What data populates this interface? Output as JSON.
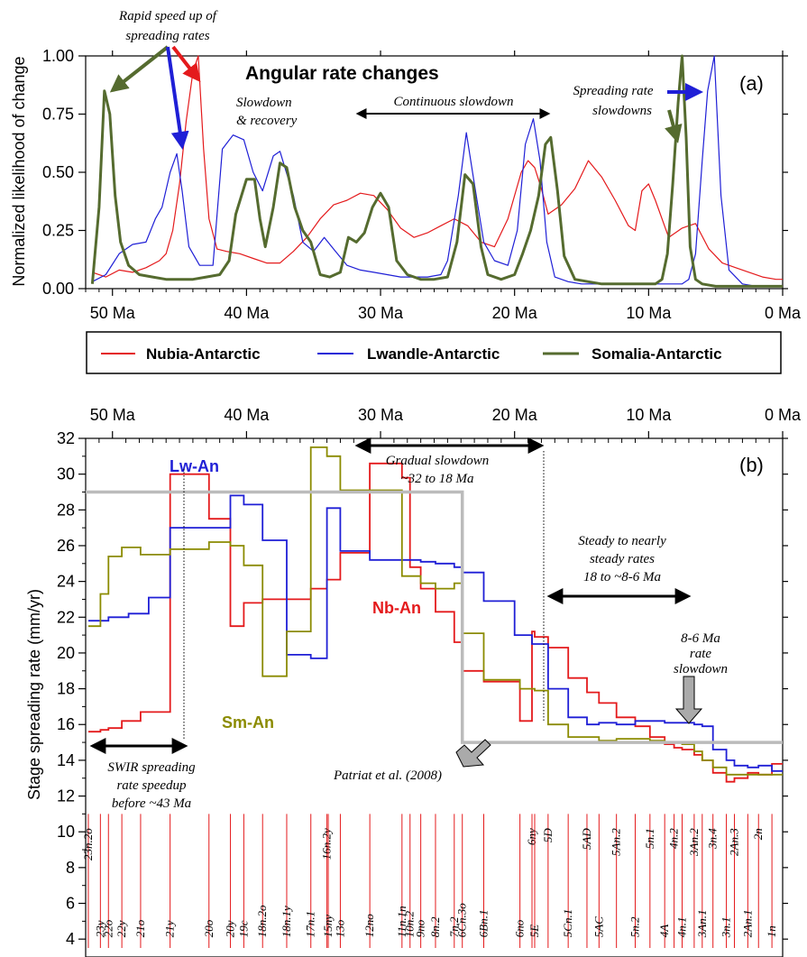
{
  "colors": {
    "nubia": "#e41a1c",
    "lwandle": "#1f1fd6",
    "somalia": "#556b2f",
    "somalia_b": "#8b8b00",
    "patriat": "#bbbbbb",
    "arrow_blue": "#1f1fd6",
    "arrow_red": "#e41a1c",
    "arrow_green": "#556b2f"
  },
  "panel_a": {
    "title": "Angular rate changes",
    "tag": "(a)",
    "ylabel": "Normalized likelihood of change",
    "x_ticks": [
      "50 Ma",
      "40 Ma",
      "30 Ma",
      "20 Ma",
      "10 Ma",
      "0 Ma"
    ],
    "y_ticks": [
      "0.00",
      "0.25",
      "0.50",
      "0.75",
      "1.00"
    ],
    "annotations": {
      "rapid_1": "Rapid speed up of",
      "rapid_2": "spreading rates",
      "slow_1": "Slowdown",
      "slow_2": "& recovery",
      "continuous": "Continuous slowdown",
      "srs_1": "Spreading rate",
      "srs_2": "slowdowns"
    }
  },
  "legend": {
    "nubia": "Nubia-Antarctic",
    "lwandle": "Lwandle-Antarctic",
    "somalia": "Somalia-Antarctic"
  },
  "panel_b": {
    "tag": "(b)",
    "ylabel": "Stage spreading rate (mm/yr)",
    "x_ticks": [
      "50 Ma",
      "40 Ma",
      "30 Ma",
      "20 Ma",
      "10 Ma",
      "0 Ma"
    ],
    "y_ticks": [
      "4",
      "6",
      "8",
      "10",
      "12",
      "14",
      "16",
      "18",
      "20",
      "22",
      "24",
      "26",
      "28",
      "30",
      "32"
    ],
    "labels": {
      "lw": "Lw-An",
      "nb": "Nb-An",
      "sm": "Sm-An"
    },
    "annotations": {
      "gradual_1": "Gradual slowdown",
      "gradual_2": "~32 to 18 Ma",
      "steady_1": "Steady to nearly",
      "steady_2": "steady rates",
      "steady_3": "18 to ~8-6 Ma",
      "rate_1": "8-6 Ma",
      "rate_2": "rate",
      "rate_3": "slowdown",
      "swir_1": "SWIR spreading",
      "swir_2": "rate speedup",
      "swir_3": "before ~43 Ma",
      "patriat": "Patriat et al. (2008)"
    },
    "chrons": [
      {
        "name": "23n.2o",
        "age": 51.8,
        "pos": "high"
      },
      {
        "name": "23y",
        "age": 50.9,
        "pos": "low"
      },
      {
        "name": "22o",
        "age": 50.3,
        "pos": "low"
      },
      {
        "name": "22y",
        "age": 49.3,
        "pos": "low"
      },
      {
        "name": "21o",
        "age": 47.9,
        "pos": "low"
      },
      {
        "name": "21y",
        "age": 45.7,
        "pos": "low"
      },
      {
        "name": "20o",
        "age": 42.8,
        "pos": "low"
      },
      {
        "name": "20y",
        "age": 41.2,
        "pos": "low"
      },
      {
        "name": "19c",
        "age": 40.2,
        "pos": "low"
      },
      {
        "name": "18n.2o",
        "age": 38.8,
        "pos": "low"
      },
      {
        "name": "18n.1y",
        "age": 37.0,
        "pos": "low"
      },
      {
        "name": "17n.1",
        "age": 35.2,
        "pos": "low"
      },
      {
        "name": "16n.2y",
        "age": 34.0,
        "pos": "high"
      },
      {
        "name": "15ny",
        "age": 33.9,
        "pos": "low"
      },
      {
        "name": "13o",
        "age": 33.0,
        "pos": "low"
      },
      {
        "name": "12no",
        "age": 30.8,
        "pos": "low"
      },
      {
        "name": "11n.1n",
        "age": 28.4,
        "pos": "low"
      },
      {
        "name": "10n.2",
        "age": 27.8,
        "pos": "low"
      },
      {
        "name": "9no",
        "age": 27.0,
        "pos": "low"
      },
      {
        "name": "8n.2",
        "age": 25.9,
        "pos": "low"
      },
      {
        "name": "7n.2",
        "age": 24.5,
        "pos": "low"
      },
      {
        "name": "6Cn.3o",
        "age": 23.9,
        "pos": "low"
      },
      {
        "name": "6Bn.1",
        "age": 22.3,
        "pos": "low"
      },
      {
        "name": "6no",
        "age": 19.6,
        "pos": "low"
      },
      {
        "name": "6ny",
        "age": 18.7,
        "pos": "high"
      },
      {
        "name": "5E",
        "age": 18.5,
        "pos": "low"
      },
      {
        "name": "5D",
        "age": 17.5,
        "pos": "high"
      },
      {
        "name": "5Cn.1",
        "age": 16.0,
        "pos": "low"
      },
      {
        "name": "5AD",
        "age": 14.6,
        "pos": "high"
      },
      {
        "name": "5AC",
        "age": 13.7,
        "pos": "low"
      },
      {
        "name": "5An.2",
        "age": 12.4,
        "pos": "high"
      },
      {
        "name": "5n.2",
        "age": 11.0,
        "pos": "low"
      },
      {
        "name": "5n.1",
        "age": 9.9,
        "pos": "high"
      },
      {
        "name": "4A",
        "age": 8.8,
        "pos": "low"
      },
      {
        "name": "4n.2",
        "age": 8.1,
        "pos": "high"
      },
      {
        "name": "4n.1",
        "age": 7.5,
        "pos": "low"
      },
      {
        "name": "3An.2",
        "age": 6.6,
        "pos": "high"
      },
      {
        "name": "3An.1",
        "age": 6.0,
        "pos": "low"
      },
      {
        "name": "3n.4",
        "age": 5.2,
        "pos": "high"
      },
      {
        "name": "3n.1",
        "age": 4.2,
        "pos": "low"
      },
      {
        "name": "2An.3",
        "age": 3.6,
        "pos": "high"
      },
      {
        "name": "2An.1",
        "age": 2.6,
        "pos": "low"
      },
      {
        "name": "2n",
        "age": 1.8,
        "pos": "high"
      },
      {
        "name": "1n",
        "age": 0.8,
        "pos": "low"
      }
    ]
  },
  "chart_data": [
    {
      "type": "line",
      "panel": "a",
      "title": "Angular rate changes",
      "xlabel": "",
      "ylabel": "Normalized likelihood of change",
      "xlim": [
        52,
        0
      ],
      "ylim": [
        0,
        1
      ],
      "series": [
        {
          "name": "Nubia-Antarctic",
          "color": "#e41a1c",
          "x": [
            51.5,
            50.5,
            49.5,
            48.5,
            47.5,
            46.5,
            46.0,
            45.5,
            45.0,
            44.5,
            44.0,
            43.6,
            43.2,
            42.8,
            42.2,
            41.5,
            40.5,
            39.5,
            38.5,
            37.5,
            36.5,
            35.5,
            34.5,
            33.5,
            32.5,
            31.5,
            30.5,
            29.5,
            28.5,
            27.5,
            26.5,
            25.5,
            24.5,
            23.5,
            22.5,
            21.5,
            20.5,
            19.5,
            19.0,
            18.5,
            18.0,
            17.5,
            16.5,
            15.5,
            14.5,
            13.5,
            12.5,
            11.5,
            11.0,
            10.5,
            10.0,
            9.5,
            8.5,
            7.5,
            6.5,
            5.5,
            4.5,
            3.5,
            2.5,
            1.5,
            0.5,
            0.0
          ],
          "y": [
            0.07,
            0.05,
            0.08,
            0.07,
            0.09,
            0.12,
            0.15,
            0.25,
            0.45,
            0.72,
            0.93,
            1.0,
            0.6,
            0.3,
            0.17,
            0.16,
            0.15,
            0.13,
            0.11,
            0.11,
            0.16,
            0.22,
            0.3,
            0.36,
            0.38,
            0.41,
            0.4,
            0.34,
            0.26,
            0.22,
            0.24,
            0.27,
            0.3,
            0.27,
            0.2,
            0.18,
            0.3,
            0.5,
            0.55,
            0.52,
            0.43,
            0.32,
            0.36,
            0.43,
            0.55,
            0.48,
            0.38,
            0.27,
            0.25,
            0.42,
            0.45,
            0.38,
            0.22,
            0.26,
            0.28,
            0.17,
            0.11,
            0.09,
            0.07,
            0.05,
            0.04,
            0.04
          ]
        },
        {
          "name": "Lwandle-Antarctic",
          "color": "#1f1fd6",
          "x": [
            51.5,
            50.5,
            49.5,
            48.5,
            47.5,
            46.8,
            46.3,
            45.7,
            45.2,
            44.8,
            44.3,
            43.5,
            42.5,
            41.8,
            41.0,
            40.2,
            39.5,
            38.8,
            38.0,
            37.5,
            36.5,
            35.8,
            35.0,
            34.2,
            33.5,
            32.5,
            31.5,
            30.5,
            29.5,
            28.5,
            27.5,
            26.5,
            25.5,
            25.0,
            24.2,
            23.6,
            23.0,
            22.3,
            21.5,
            20.5,
            19.8,
            19.2,
            18.6,
            18.1,
            17.6,
            17.0,
            16.0,
            15.0,
            14.0,
            13.0,
            12.0,
            11.0,
            10.0,
            9.0,
            8.0,
            7.5,
            7.0,
            6.5,
            6.0,
            5.6,
            5.1,
            4.6,
            4.0,
            3.0,
            2.0,
            1.0,
            0.0
          ],
          "y": [
            0.03,
            0.06,
            0.15,
            0.19,
            0.2,
            0.3,
            0.35,
            0.5,
            0.58,
            0.42,
            0.18,
            0.1,
            0.1,
            0.6,
            0.66,
            0.64,
            0.5,
            0.42,
            0.57,
            0.59,
            0.4,
            0.2,
            0.16,
            0.22,
            0.17,
            0.1,
            0.08,
            0.07,
            0.06,
            0.05,
            0.05,
            0.05,
            0.06,
            0.12,
            0.4,
            0.67,
            0.45,
            0.2,
            0.12,
            0.1,
            0.25,
            0.62,
            0.73,
            0.55,
            0.2,
            0.05,
            0.03,
            0.02,
            0.02,
            0.02,
            0.02,
            0.02,
            0.02,
            0.02,
            0.02,
            0.02,
            0.04,
            0.15,
            0.55,
            0.85,
            1.0,
            0.4,
            0.08,
            0.02,
            0.01,
            0.01,
            0.01
          ]
        },
        {
          "name": "Somalia-Antarctic",
          "color": "#556b2f",
          "x": [
            51.5,
            51.0,
            50.6,
            50.2,
            49.8,
            49.4,
            48.8,
            48.0,
            47.0,
            46.0,
            45.0,
            44.0,
            43.0,
            42.0,
            41.3,
            40.8,
            40.0,
            39.4,
            39.0,
            38.6,
            38.0,
            37.5,
            37.0,
            36.4,
            35.8,
            35.2,
            34.5,
            33.8,
            33.0,
            32.4,
            31.8,
            31.2,
            30.6,
            30.0,
            29.4,
            28.8,
            28.0,
            27.0,
            26.0,
            25.0,
            24.3,
            23.7,
            23.1,
            22.5,
            22.0,
            21.0,
            20.0,
            19.4,
            18.8,
            18.2,
            17.7,
            17.3,
            16.8,
            16.3,
            15.5,
            14.5,
            13.5,
            12.5,
            11.5,
            10.5,
            9.5,
            9.0,
            8.6,
            8.2,
            7.8,
            7.5,
            7.2,
            6.9,
            6.5,
            6.0,
            5.0,
            4.0,
            3.0,
            2.0,
            1.0,
            0.0
          ],
          "y": [
            0.02,
            0.35,
            0.85,
            0.75,
            0.4,
            0.2,
            0.1,
            0.06,
            0.05,
            0.04,
            0.04,
            0.04,
            0.05,
            0.06,
            0.12,
            0.32,
            0.47,
            0.47,
            0.3,
            0.18,
            0.35,
            0.54,
            0.52,
            0.35,
            0.25,
            0.2,
            0.06,
            0.05,
            0.07,
            0.22,
            0.2,
            0.24,
            0.35,
            0.41,
            0.35,
            0.12,
            0.06,
            0.04,
            0.04,
            0.05,
            0.2,
            0.49,
            0.45,
            0.18,
            0.06,
            0.04,
            0.06,
            0.15,
            0.25,
            0.4,
            0.62,
            0.65,
            0.42,
            0.14,
            0.04,
            0.03,
            0.02,
            0.02,
            0.02,
            0.02,
            0.02,
            0.04,
            0.15,
            0.45,
            0.8,
            1.0,
            0.65,
            0.18,
            0.04,
            0.02,
            0.01,
            0.01,
            0.01,
            0.01,
            0.01,
            0.01
          ]
        }
      ]
    },
    {
      "type": "line",
      "panel": "b",
      "xlabel": "",
      "ylabel": "Stage spreading rate (mm/yr)",
      "xlim": [
        52,
        0
      ],
      "ylim": [
        3,
        32
      ],
      "series": [
        {
          "name": "Nb-An",
          "color": "#e41a1c",
          "step": true,
          "x": [
            51.8,
            50.9,
            50.3,
            49.3,
            47.9,
            45.7,
            42.8,
            41.2,
            40.2,
            38.8,
            37.0,
            35.2,
            34.0,
            33.0,
            30.8,
            28.4,
            27.8,
            27.0,
            25.9,
            24.5,
            23.9,
            22.3,
            19.6,
            18.7,
            18.5,
            17.5,
            16.0,
            14.6,
            13.7,
            12.4,
            11.0,
            9.9,
            8.8,
            8.1,
            7.5,
            6.6,
            6.0,
            5.2,
            4.2,
            3.6,
            2.6,
            1.8,
            0.8,
            0.0
          ],
          "y": [
            15.6,
            15.7,
            15.8,
            16.2,
            16.7,
            30.0,
            27.5,
            21.5,
            22.8,
            23.0,
            23.0,
            23.6,
            24.1,
            25.6,
            30.6,
            29.8,
            24.8,
            23.6,
            22.3,
            20.6,
            19.0,
            18.4,
            16.2,
            21.2,
            20.9,
            20.3,
            18.6,
            17.8,
            17.2,
            16.4,
            15.9,
            15.3,
            14.9,
            14.7,
            14.6,
            14.3,
            14.0,
            13.3,
            12.8,
            13.0,
            13.3,
            13.2,
            13.8,
            14.4
          ]
        },
        {
          "name": "Lw-An",
          "color": "#1f1fd6",
          "step": true,
          "x": [
            51.8,
            50.3,
            48.8,
            47.3,
            45.7,
            42.8,
            41.2,
            40.2,
            38.8,
            37.0,
            35.2,
            34.0,
            33.0,
            30.8,
            28.4,
            27.0,
            25.9,
            24.5,
            23.9,
            22.3,
            20.0,
            18.7,
            17.5,
            16.0,
            14.6,
            13.7,
            12.4,
            11.0,
            9.9,
            8.8,
            7.5,
            6.6,
            6.0,
            5.2,
            4.2,
            3.6,
            2.6,
            1.8,
            0.8,
            0.0
          ],
          "y": [
            21.8,
            22.0,
            22.2,
            23.1,
            27.0,
            27.0,
            28.8,
            28.3,
            26.3,
            19.9,
            19.7,
            28.1,
            25.7,
            25.2,
            25.2,
            25.1,
            25.0,
            24.8,
            24.5,
            22.9,
            21.0,
            20.5,
            18.0,
            16.4,
            16.0,
            16.1,
            16.0,
            16.2,
            16.2,
            16.1,
            16.1,
            16.0,
            15.9,
            14.6,
            14.0,
            13.7,
            13.6,
            13.7,
            13.4,
            13.2
          ]
        },
        {
          "name": "Sm-An",
          "color": "#8b8b00",
          "step": true,
          "x": [
            51.8,
            50.9,
            50.3,
            49.3,
            47.9,
            45.7,
            42.8,
            41.2,
            40.2,
            38.8,
            37.0,
            35.2,
            34.0,
            33.0,
            30.8,
            28.4,
            27.0,
            25.9,
            24.5,
            23.9,
            22.3,
            19.6,
            18.5,
            17.5,
            16.0,
            14.6,
            13.7,
            12.4,
            11.0,
            9.9,
            8.8,
            7.5,
            6.6,
            6.0,
            5.2,
            4.2,
            3.6,
            2.6,
            1.8,
            0.8,
            0.0
          ],
          "y": [
            21.5,
            23.3,
            25.4,
            25.9,
            25.5,
            25.8,
            26.2,
            26.0,
            24.9,
            18.7,
            21.2,
            31.5,
            31.0,
            29.1,
            29.1,
            24.3,
            23.9,
            23.6,
            23.9,
            21.1,
            18.5,
            18.0,
            17.9,
            16.0,
            15.3,
            15.3,
            15.1,
            15.2,
            15.2,
            15.1,
            15.0,
            14.9,
            14.5,
            14.0,
            13.6,
            13.2,
            13.2,
            13.2,
            13.2,
            13.2,
            13.2
          ]
        },
        {
          "name": "Patriat et al. (2008)",
          "color": "#bbbbbb",
          "step": false,
          "x": [
            52.0,
            23.9,
            23.9,
            0.0
          ],
          "y": [
            29.0,
            29.0,
            15.0,
            15.0
          ]
        }
      ]
    }
  ]
}
